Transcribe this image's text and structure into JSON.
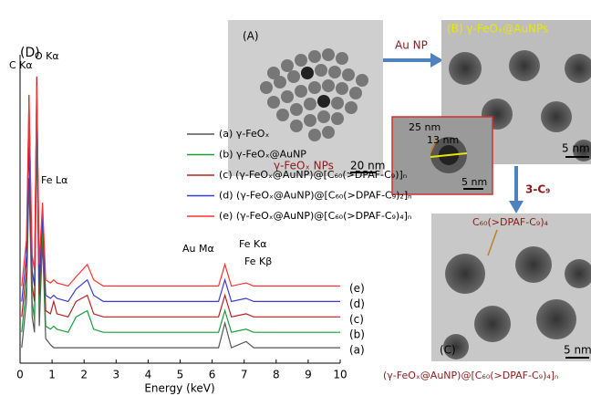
{
  "chart_data": {
    "type": "line",
    "panel_label": "(D)",
    "x_label": "Energy (keV)",
    "xlim": [
      0,
      10
    ],
    "xticks": [
      0,
      1,
      2,
      3,
      4,
      5,
      6,
      7,
      8,
      9,
      10
    ],
    "ylim": [
      0,
      100
    ],
    "x": [
      0.05,
      0.2,
      0.28,
      0.38,
      0.45,
      0.52,
      0.6,
      0.7,
      0.8,
      0.95,
      1.05,
      1.15,
      1.5,
      1.75,
      2.1,
      2.3,
      2.6,
      3.5,
      5,
      6.2,
      6.4,
      6.6,
      7.06,
      7.3,
      8.5,
      10
    ],
    "series": [
      {
        "name": "(a) γ-FeOₓ",
        "trace_label": "(a)",
        "color": "#555555",
        "values": [
          5,
          20,
          60,
          15,
          10,
          75,
          12,
          40,
          8,
          6,
          5,
          5,
          5,
          5,
          5,
          5,
          5,
          5,
          5,
          5,
          13,
          5,
          7,
          5,
          5,
          5
        ]
      },
      {
        "name": "(b) γ-FeOₓ@AuNP",
        "trace_label": "(b)",
        "color": "#1a9c3a",
        "values": [
          10,
          25,
          80,
          20,
          14,
          85,
          18,
          45,
          12,
          11,
          12,
          11,
          10,
          15,
          17,
          11,
          10,
          10,
          10,
          10,
          17,
          10,
          11,
          10,
          10,
          10
        ]
      },
      {
        "name": "(c) (γ-FeOₓ@AuNP)@[C₆₀(>DPAF-C₉)]ₙ",
        "trace_label": "(c)",
        "color": "#b22222",
        "values": [
          15,
          30,
          87,
          25,
          20,
          93,
          22,
          50,
          17,
          16,
          20,
          16,
          15,
          20,
          22,
          16,
          15,
          15,
          15,
          15,
          22,
          15,
          16,
          15,
          15,
          15
        ]
      },
      {
        "name": "(d) (γ-FeOₓ@AuNP)@[C₆₀(>DPAF-C₉)₂]ₙ",
        "trace_label": "(d)",
        "color": "#3a3ad0",
        "values": [
          20,
          35,
          70,
          30,
          25,
          88,
          26,
          48,
          22,
          21,
          22,
          21,
          20,
          24,
          27,
          22,
          20,
          20,
          20,
          20,
          27,
          20,
          21,
          20,
          20,
          20
        ]
      },
      {
        "name": "(e) (γ-FeOₓ@AuNP)@[C₆₀(>DPAF-C₉)₄]ₙ",
        "trace_label": "(e)",
        "color": "#ff3030",
        "values": [
          25,
          40,
          85,
          35,
          30,
          90,
          32,
          52,
          27,
          26,
          27,
          26,
          25,
          28,
          32,
          27,
          25,
          25,
          25,
          25,
          32,
          25,
          26,
          25,
          25,
          25
        ]
      }
    ],
    "annotations": [
      "C Kα",
      "O Kα",
      "Fe Lα",
      "Au Mα",
      "Fe Kα",
      "Fe Kβ"
    ]
  },
  "panels": {
    "A": {
      "label": "(A)",
      "caption": "γ-FeOₓ NPs",
      "scale": "20 nm"
    },
    "arrow_1": "Au NP",
    "B": {
      "label": "(B) γ-FeOₓ@AuNPs",
      "scale": "5 nm"
    },
    "inset": {
      "outer": "25 nm",
      "inner": "13 nm",
      "scale": "5 nm"
    },
    "arrow_2": "3-C₉",
    "C": {
      "label": "(C)",
      "caption": "C₆₀(>DPAF-C₉)₄",
      "scale": "5 nm",
      "product": "(γ-FeOₓ@AuNP)@[C₆₀(>DPAF-C₉)₄]ₙ"
    }
  }
}
